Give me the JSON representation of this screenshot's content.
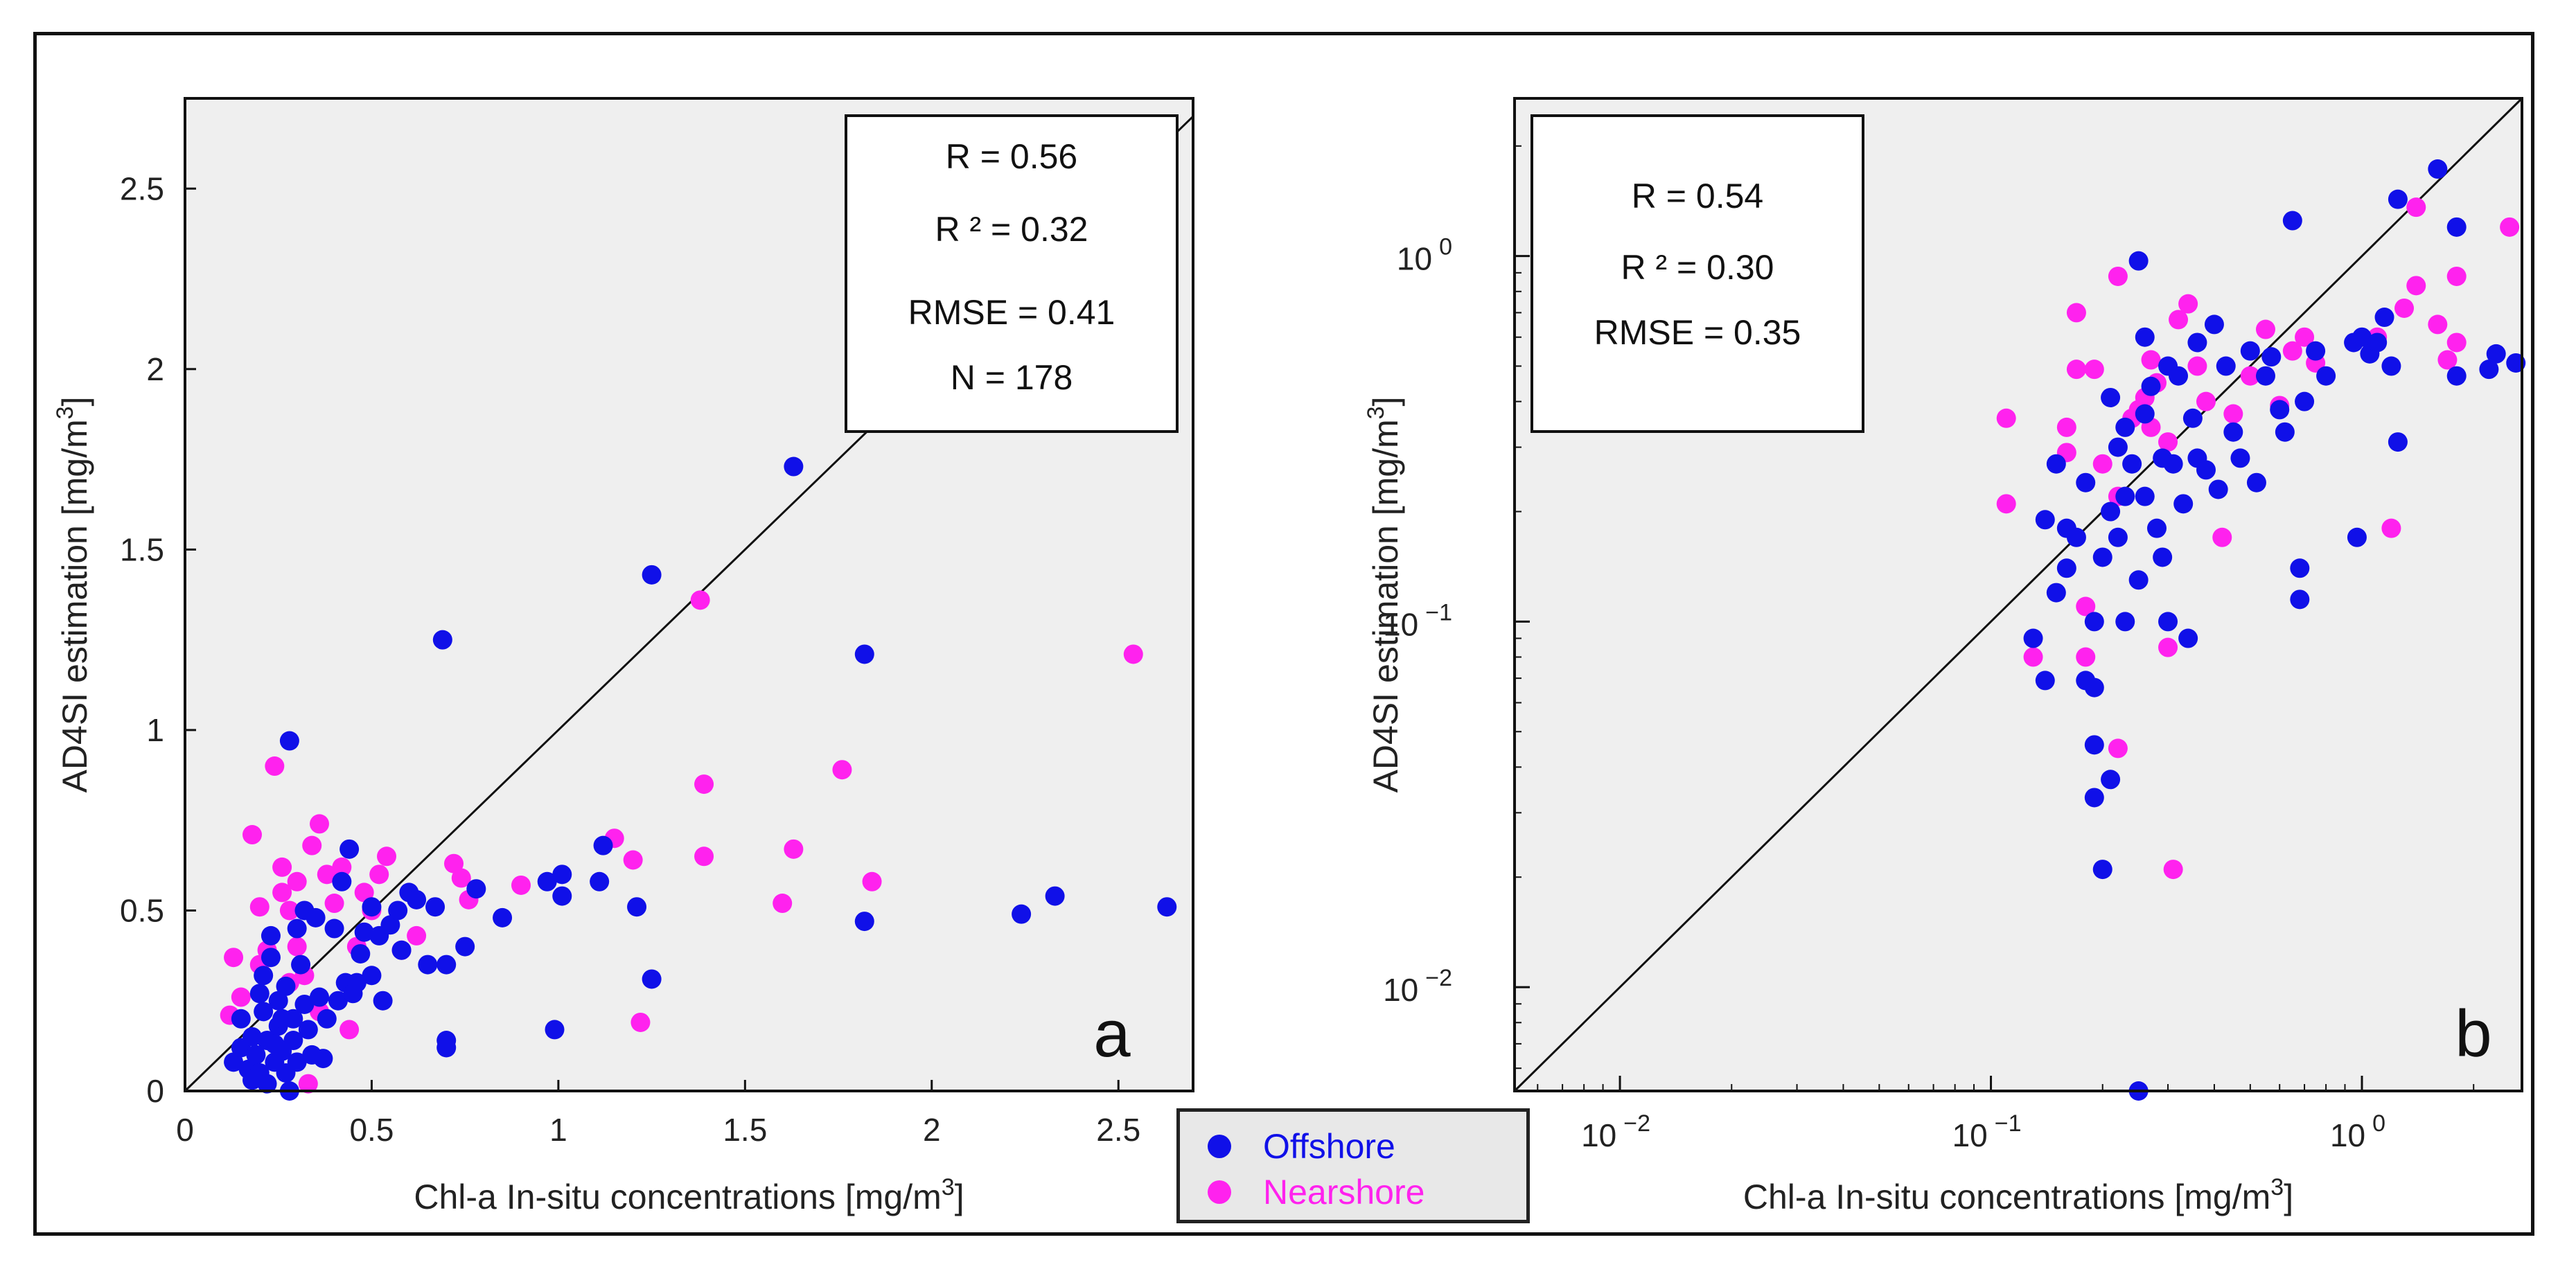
{
  "chart_data": [
    {
      "id": "a",
      "type": "scatter",
      "scale": "linear",
      "panel_label": "a",
      "xlabel_prefix": "Chl-a In-situ concentrations [mg/m",
      "xlabel_sup": "3",
      "xlabel_suffix": "]",
      "ylabel_prefix": "AD4SI estimation [mg/m",
      "ylabel_sup": "3",
      "ylabel_suffix": "]",
      "xlim": [
        0,
        2.7
      ],
      "ylim": [
        0,
        2.75
      ],
      "xticks": [
        0,
        0.5,
        1,
        1.5,
        2,
        2.5
      ],
      "xtick_labels": [
        "0",
        "0.5",
        "1",
        "1.5",
        "2",
        "2.5"
      ],
      "yticks": [
        0,
        0.5,
        1,
        1.5,
        2,
        2.5
      ],
      "ytick_labels": [
        "0",
        "0.5",
        "1",
        "1.5",
        "2",
        "2.5"
      ],
      "one_to_one_line": true,
      "stats": [
        "R = 0.56",
        "R ² = 0.32",
        "RMSE = 0.41",
        "N = 178"
      ],
      "series": [
        {
          "name": "Nearshore",
          "color": "#ff22ee",
          "points": [
            [
              0.13,
              0.37
            ],
            [
              0.12,
              0.21
            ],
            [
              0.18,
              0.71
            ],
            [
              0.2,
              0.51
            ],
            [
              0.22,
              0.39
            ],
            [
              0.24,
              0.9
            ],
            [
              0.26,
              0.62
            ],
            [
              0.28,
              0.5
            ],
            [
              0.3,
              0.58
            ],
            [
              0.3,
              0.4
            ],
            [
              0.32,
              0.32
            ],
            [
              0.34,
              0.68
            ],
            [
              0.36,
              0.74
            ],
            [
              0.38,
              0.6
            ],
            [
              0.4,
              0.52
            ],
            [
              0.42,
              0.62
            ],
            [
              0.44,
              0.17
            ],
            [
              0.46,
              0.4
            ],
            [
              0.5,
              0.5
            ],
            [
              0.52,
              0.6
            ],
            [
              0.54,
              0.65
            ],
            [
              0.58,
              0.39
            ],
            [
              0.62,
              0.43
            ],
            [
              0.72,
              0.63
            ],
            [
              0.74,
              0.59
            ],
            [
              0.76,
              0.53
            ],
            [
              0.9,
              0.57
            ],
            [
              1.15,
              0.7
            ],
            [
              1.2,
              0.64
            ],
            [
              1.22,
              0.19
            ],
            [
              1.38,
              1.36
            ],
            [
              1.39,
              0.85
            ],
            [
              1.39,
              0.65
            ],
            [
              1.6,
              0.52
            ],
            [
              1.63,
              0.67
            ],
            [
              1.76,
              0.89
            ],
            [
              1.84,
              0.58
            ],
            [
              2.54,
              1.21
            ],
            [
              0.28,
              0.3
            ],
            [
              0.33,
              0.02
            ],
            [
              0.2,
              0.35
            ],
            [
              0.15,
              0.26
            ],
            [
              0.36,
              0.22
            ],
            [
              0.26,
              0.55
            ],
            [
              0.48,
              0.55
            ]
          ]
        },
        {
          "name": "Offshore",
          "color": "#1010e8",
          "points": [
            [
              0.13,
              0.08
            ],
            [
              0.15,
              0.2
            ],
            [
              0.15,
              0.12
            ],
            [
              0.17,
              0.06
            ],
            [
              0.18,
              0.15
            ],
            [
              0.19,
              0.1
            ],
            [
              0.2,
              0.27
            ],
            [
              0.2,
              0.05
            ],
            [
              0.21,
              0.22
            ],
            [
              0.22,
              0.14
            ],
            [
              0.22,
              0.02
            ],
            [
              0.23,
              0.37
            ],
            [
              0.23,
              0.43
            ],
            [
              0.24,
              0.08
            ],
            [
              0.25,
              0.25
            ],
            [
              0.25,
              0.18
            ],
            [
              0.26,
              0.11
            ],
            [
              0.27,
              0.05
            ],
            [
              0.27,
              0.29
            ],
            [
              0.28,
              0.97
            ],
            [
              0.28,
              0.0
            ],
            [
              0.29,
              0.2
            ],
            [
              0.29,
              0.14
            ],
            [
              0.3,
              0.45
            ],
            [
              0.3,
              0.08
            ],
            [
              0.31,
              0.35
            ],
            [
              0.32,
              0.24
            ],
            [
              0.32,
              0.5
            ],
            [
              0.33,
              0.17
            ],
            [
              0.34,
              0.1
            ],
            [
              0.35,
              0.48
            ],
            [
              0.36,
              0.26
            ],
            [
              0.37,
              0.09
            ],
            [
              0.38,
              0.2
            ],
            [
              0.4,
              0.45
            ],
            [
              0.41,
              0.25
            ],
            [
              0.42,
              0.58
            ],
            [
              0.43,
              0.3
            ],
            [
              0.44,
              0.67
            ],
            [
              0.45,
              0.27
            ],
            [
              0.46,
              0.3
            ],
            [
              0.47,
              0.38
            ],
            [
              0.48,
              0.44
            ],
            [
              0.5,
              0.32
            ],
            [
              0.5,
              0.51
            ],
            [
              0.52,
              0.43
            ],
            [
              0.53,
              0.25
            ],
            [
              0.55,
              0.46
            ],
            [
              0.57,
              0.5
            ],
            [
              0.58,
              0.39
            ],
            [
              0.6,
              0.55
            ],
            [
              0.62,
              0.53
            ],
            [
              0.65,
              0.35
            ],
            [
              0.67,
              0.51
            ],
            [
              0.69,
              1.25
            ],
            [
              0.7,
              0.35
            ],
            [
              0.7,
              0.14
            ],
            [
              0.7,
              0.12
            ],
            [
              0.75,
              0.4
            ],
            [
              0.78,
              0.56
            ],
            [
              0.85,
              0.48
            ],
            [
              0.97,
              0.58
            ],
            [
              0.99,
              0.17
            ],
            [
              1.01,
              0.6
            ],
            [
              1.01,
              0.54
            ],
            [
              1.11,
              0.58
            ],
            [
              1.12,
              0.68
            ],
            [
              1.21,
              0.51
            ],
            [
              1.25,
              1.43
            ],
            [
              1.25,
              0.31
            ],
            [
              1.63,
              1.73
            ],
            [
              1.82,
              1.21
            ],
            [
              1.82,
              0.47
            ],
            [
              2.24,
              0.49
            ],
            [
              2.33,
              0.54
            ],
            [
              2.63,
              0.51
            ],
            [
              0.21,
              0.32
            ],
            [
              0.18,
              0.03
            ],
            [
              0.26,
              0.2
            ],
            [
              0.24,
              0.13
            ]
          ]
        }
      ]
    },
    {
      "id": "b",
      "type": "scatter",
      "scale": "log",
      "panel_label": "b",
      "xlabel_prefix": "Chl-a In-situ concentrations [mg/m",
      "xlabel_sup": "3",
      "xlabel_suffix": "]",
      "ylabel_prefix": "AD4SI estimation [mg/m",
      "ylabel_sup": "3",
      "ylabel_suffix": "]",
      "xlim": [
        0.0052,
        2.7
      ],
      "ylim": [
        0.0052,
        2.7
      ],
      "xticks": [
        0.01,
        0.1,
        1
      ],
      "xtick_bases": [
        "10",
        "10",
        "10"
      ],
      "xtick_exps": [
        "−2",
        "−1",
        "0"
      ],
      "yticks": [
        0.01,
        0.1,
        1
      ],
      "ytick_bases": [
        "10",
        "10",
        "10"
      ],
      "ytick_exps": [
        "−2",
        "−1",
        "0"
      ],
      "one_to_one_line": true,
      "stats": [
        "R = 0.54",
        "R ² = 0.30",
        "RMSE = 0.35"
      ],
      "series": [
        {
          "name": "Nearshore",
          "color": "#ff22ee",
          "points": [
            [
              0.11,
              0.36
            ],
            [
              0.11,
              0.21
            ],
            [
              0.13,
              0.08
            ],
            [
              0.16,
              0.34
            ],
            [
              0.16,
              0.29
            ],
            [
              0.17,
              0.7
            ],
            [
              0.17,
              0.49
            ],
            [
              0.18,
              0.11
            ],
            [
              0.18,
              0.08
            ],
            [
              0.19,
              0.49
            ],
            [
              0.2,
              0.27
            ],
            [
              0.22,
              0.88
            ],
            [
              0.22,
              0.22
            ],
            [
              0.22,
              0.045
            ],
            [
              0.24,
              0.36
            ],
            [
              0.25,
              0.38
            ],
            [
              0.26,
              0.41
            ],
            [
              0.27,
              0.52
            ],
            [
              0.28,
              0.45
            ],
            [
              0.3,
              0.31
            ],
            [
              0.3,
              0.085
            ],
            [
              0.31,
              0.021
            ],
            [
              0.32,
              0.67
            ],
            [
              0.34,
              0.74
            ],
            [
              0.36,
              0.5
            ],
            [
              0.38,
              0.4
            ],
            [
              0.42,
              0.17
            ],
            [
              0.45,
              0.37
            ],
            [
              0.5,
              0.47
            ],
            [
              0.55,
              0.63
            ],
            [
              0.6,
              0.39
            ],
            [
              0.7,
              0.6
            ],
            [
              0.75,
              0.51
            ],
            [
              1.1,
              0.6
            ],
            [
              1.2,
              0.18
            ],
            [
              1.3,
              0.72
            ],
            [
              1.4,
              1.36
            ],
            [
              1.4,
              0.83
            ],
            [
              1.6,
              0.65
            ],
            [
              1.7,
              0.52
            ],
            [
              1.8,
              0.88
            ],
            [
              1.8,
              0.58
            ],
            [
              2.5,
              1.2
            ],
            [
              0.65,
              0.55
            ],
            [
              0.27,
              0.34
            ]
          ]
        },
        {
          "name": "Offshore",
          "color": "#1010e8",
          "points": [
            [
              0.13,
              0.09
            ],
            [
              0.14,
              0.19
            ],
            [
              0.14,
              0.069
            ],
            [
              0.15,
              0.27
            ],
            [
              0.15,
              0.12
            ],
            [
              0.16,
              0.18
            ],
            [
              0.16,
              0.14
            ],
            [
              0.17,
              0.17
            ],
            [
              0.18,
              0.069
            ],
            [
              0.18,
              0.24
            ],
            [
              0.19,
              0.066
            ],
            [
              0.19,
              0.046
            ],
            [
              0.19,
              0.033
            ],
            [
              0.19,
              0.1
            ],
            [
              0.2,
              0.15
            ],
            [
              0.2,
              0.021
            ],
            [
              0.21,
              0.41
            ],
            [
              0.21,
              0.2
            ],
            [
              0.21,
              0.037
            ],
            [
              0.22,
              0.3
            ],
            [
              0.22,
              0.17
            ],
            [
              0.23,
              0.22
            ],
            [
              0.23,
              0.1
            ],
            [
              0.24,
              0.27
            ],
            [
              0.25,
              0.97
            ],
            [
              0.25,
              0.13
            ],
            [
              0.25,
              0.0052
            ],
            [
              0.26,
              0.6
            ],
            [
              0.26,
              0.37
            ],
            [
              0.26,
              0.22
            ],
            [
              0.27,
              0.44
            ],
            [
              0.28,
              0.18
            ],
            [
              0.29,
              0.28
            ],
            [
              0.29,
              0.15
            ],
            [
              0.3,
              0.5
            ],
            [
              0.3,
              0.1
            ],
            [
              0.31,
              0.27
            ],
            [
              0.32,
              0.47
            ],
            [
              0.33,
              0.21
            ],
            [
              0.34,
              0.09
            ],
            [
              0.35,
              0.36
            ],
            [
              0.36,
              0.28
            ],
            [
              0.38,
              0.26
            ],
            [
              0.4,
              0.65
            ],
            [
              0.41,
              0.23
            ],
            [
              0.43,
              0.5
            ],
            [
              0.45,
              0.33
            ],
            [
              0.47,
              0.28
            ],
            [
              0.5,
              0.55
            ],
            [
              0.52,
              0.24
            ],
            [
              0.55,
              0.47
            ],
            [
              0.57,
              0.53
            ],
            [
              0.6,
              0.38
            ],
            [
              0.62,
              0.33
            ],
            [
              0.65,
              1.25
            ],
            [
              0.68,
              0.14
            ],
            [
              0.68,
              0.115
            ],
            [
              0.7,
              0.4
            ],
            [
              0.75,
              0.55
            ],
            [
              0.8,
              0.47
            ],
            [
              0.95,
              0.58
            ],
            [
              0.97,
              0.17
            ],
            [
              1.0,
              0.6
            ],
            [
              1.05,
              0.54
            ],
            [
              1.1,
              0.58
            ],
            [
              1.15,
              0.68
            ],
            [
              1.2,
              0.5
            ],
            [
              1.25,
              1.43
            ],
            [
              1.25,
              0.31
            ],
            [
              1.6,
              1.73
            ],
            [
              1.8,
              1.2
            ],
            [
              1.8,
              0.47
            ],
            [
              2.2,
              0.49
            ],
            [
              2.3,
              0.54
            ],
            [
              2.6,
              0.51
            ],
            [
              0.23,
              0.34
            ],
            [
              0.36,
              0.58
            ]
          ]
        }
      ]
    }
  ],
  "legend": {
    "items": [
      {
        "label": "Offshore",
        "color": "#1010e8"
      },
      {
        "label": "Nearshore",
        "color": "#ff22ee"
      }
    ]
  }
}
